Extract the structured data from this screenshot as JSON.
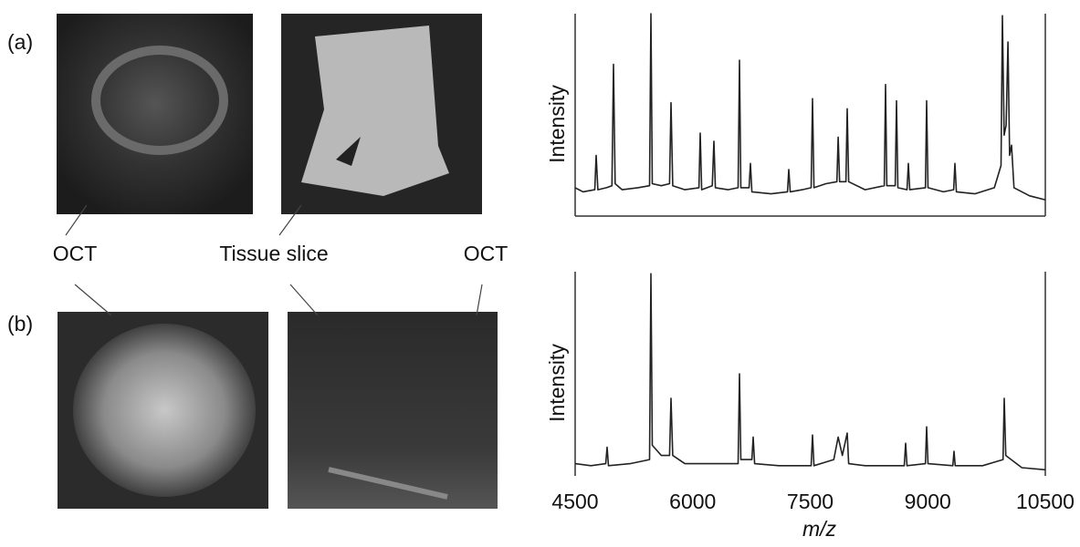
{
  "figure": {
    "panel_labels": [
      "(a)",
      "(b)"
    ],
    "callouts": [
      "OCT",
      "Tissue slice",
      "OCT"
    ]
  },
  "chart_data": [
    {
      "type": "line",
      "y_label": "Intensity",
      "color": "#222222",
      "xlim": [
        4500,
        10500
      ],
      "ylim": [
        0,
        100
      ],
      "x": [
        4500,
        4600,
        4750,
        4768,
        4790,
        4900,
        4970,
        4989,
        5010,
        5100,
        5300,
        5450,
        5467,
        5485,
        5600,
        5705,
        5723,
        5745,
        5900,
        6080,
        6096,
        6115,
        6250,
        6271,
        6290,
        6450,
        6580,
        6597,
        6615,
        6720,
        6737,
        6755,
        7000,
        7210,
        7226,
        7245,
        7400,
        7512,
        7529,
        7548,
        7700,
        7840,
        7856,
        7875,
        7955,
        7972,
        7990,
        8200,
        8445,
        8461,
        8478,
        8585,
        8601,
        8618,
        8735,
        8753,
        8770,
        8970,
        8986,
        9003,
        9200,
        9330,
        9347,
        9365,
        9600,
        9850,
        9935,
        9953,
        9975,
        10000,
        10023,
        10045,
        10069,
        10100,
        10300,
        10500
      ],
      "values": [
        14,
        12,
        13,
        30,
        13,
        14,
        15,
        75,
        16,
        13,
        14,
        15,
        100,
        16,
        15,
        16,
        56,
        15,
        13,
        14,
        41,
        13,
        15,
        37,
        14,
        13,
        14,
        77,
        14,
        14,
        26,
        12,
        11,
        12,
        23,
        12,
        13,
        14,
        58,
        14,
        16,
        17,
        39,
        17,
        17,
        53,
        17,
        13,
        15,
        65,
        15,
        15,
        57,
        14,
        13,
        26,
        13,
        14,
        57,
        14,
        12,
        13,
        26,
        12,
        11,
        14,
        25,
        99,
        40,
        45,
        86,
        30,
        35,
        14,
        10,
        8
      ]
    },
    {
      "type": "line",
      "y_label": "Intensity",
      "x_label": "m/z",
      "color": "#222222",
      "xlim": [
        4500,
        10500
      ],
      "ylim": [
        0,
        100
      ],
      "xticks": [
        4500,
        6000,
        7500,
        9000,
        10500
      ],
      "x": [
        4500,
        4700,
        4890,
        4908,
        4925,
        5200,
        5450,
        5467,
        5485,
        5600,
        5705,
        5723,
        5745,
        5900,
        6200,
        6580,
        6597,
        6615,
        6755,
        6772,
        6790,
        7100,
        7512,
        7529,
        7548,
        7800,
        7856,
        7910,
        7972,
        7990,
        8200,
        8700,
        8718,
        8735,
        8970,
        8986,
        9003,
        9320,
        9335,
        9350,
        9700,
        9960,
        9976,
        9995,
        10200,
        10500
      ],
      "values": [
        6,
        5,
        6,
        14,
        5,
        6,
        8,
        99,
        15,
        10,
        10,
        38,
        10,
        6,
        6,
        6,
        50,
        8,
        8,
        19,
        6,
        5,
        5,
        20,
        5,
        8,
        19,
        10,
        21,
        6,
        5,
        5,
        16,
        5,
        6,
        24,
        6,
        5,
        12,
        5,
        5,
        8,
        38,
        10,
        4,
        3
      ]
    }
  ]
}
